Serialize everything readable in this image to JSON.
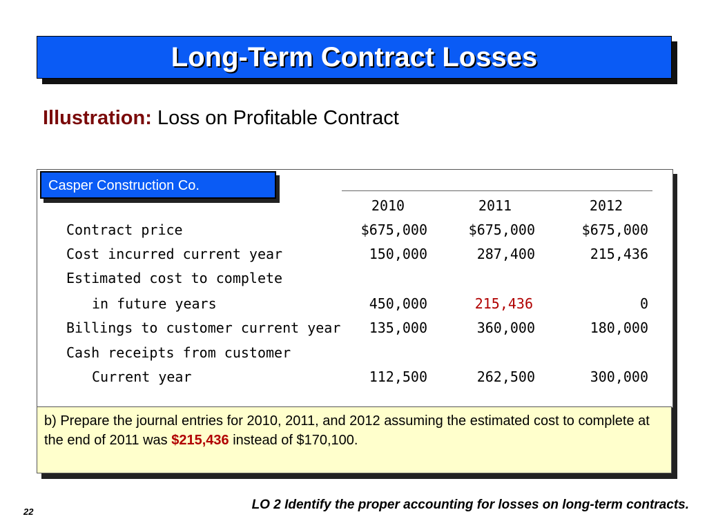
{
  "title": "Long-Term Contract Losses",
  "subtitle": {
    "label": "Illustration:",
    "text": "Loss on Profitable Contract"
  },
  "company": "Casper Construction Co.",
  "years": [
    "2010",
    "2011",
    "2012"
  ],
  "rows": [
    {
      "label": "Contract price",
      "values": [
        "$675,000",
        "$675,000",
        "$675,000"
      ]
    },
    {
      "label": "Cost incurred current year",
      "values": [
        "150,000",
        "287,400",
        "215,436"
      ]
    },
    {
      "label": "Estimated cost to complete",
      "values": [
        "",
        "",
        ""
      ]
    },
    {
      "label": "in future years",
      "values": [
        "450,000",
        "215,436",
        "0"
      ]
    },
    {
      "label": "Billings to customer current year",
      "values": [
        "135,000",
        "360,000",
        "180,000"
      ]
    },
    {
      "label": "Cash receipts from customer",
      "values": [
        "",
        "",
        ""
      ]
    },
    {
      "label": "Current year",
      "values": [
        "112,500",
        "262,500",
        "300,000"
      ]
    }
  ],
  "note": {
    "before": "b)  Prepare the journal entries for 2010, 2011, and 2012 assuming the estimated cost to complete at the end of 2011 was ",
    "highlight": "$215,436",
    "after": " instead of $170,100."
  },
  "footer": {
    "page": "22",
    "lo": "LO 2  Identify the proper accounting for losses on long-term contracts."
  },
  "colors": {
    "title_bar": "#0a5bf5",
    "highlight": "#b00000",
    "note_bg": "#ffffcc",
    "subtitle_label": "#7a0a0a"
  }
}
